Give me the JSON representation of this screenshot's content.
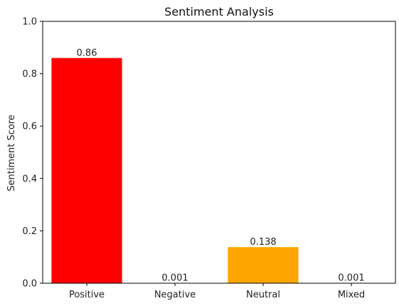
{
  "chart_data": {
    "type": "bar",
    "title": "Sentiment Analysis",
    "xlabel": "",
    "ylabel": "Sentiment Score",
    "categories": [
      "Positive",
      "Negative",
      "Neutral",
      "Mixed"
    ],
    "values": [
      0.86,
      0.001,
      0.138,
      0.001
    ],
    "value_labels": [
      "0.86",
      "0.001",
      "0.138",
      "0.001"
    ],
    "colors": [
      "#ff0000",
      "#1f77b4",
      "#ffa500",
      "#1f77b4"
    ],
    "ylim": [
      0,
      1.0
    ],
    "yticks": [
      0,
      0.2,
      0.4,
      0.6,
      0.8,
      1.0
    ],
    "ytick_labels": [
      "0.0",
      "0.2",
      "0.4",
      "0.6",
      "0.8",
      "1.0"
    ],
    "grid": false,
    "legend": "none"
  }
}
